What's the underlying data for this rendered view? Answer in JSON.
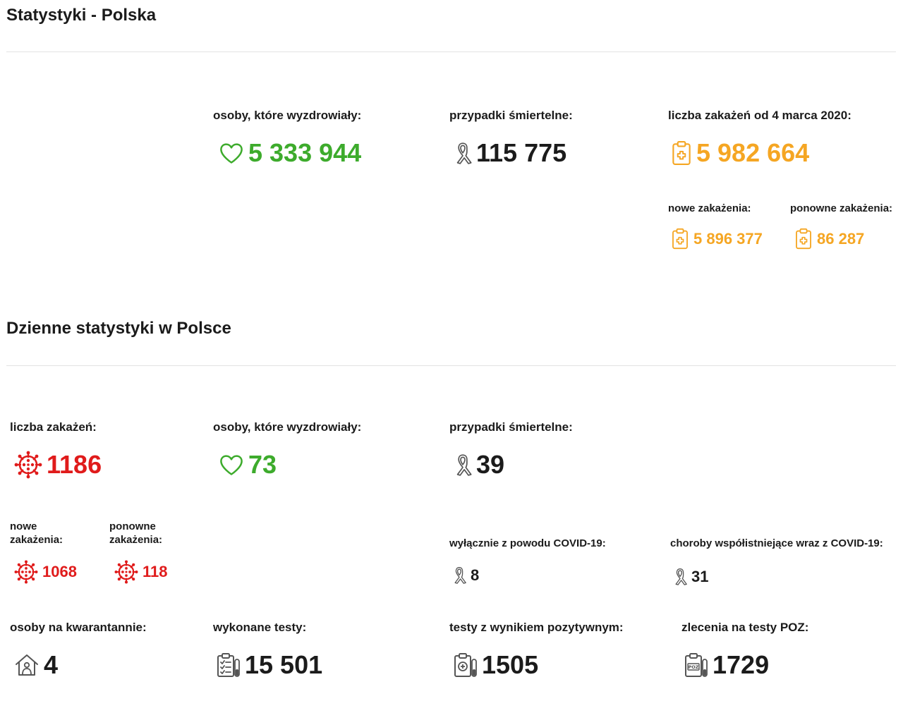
{
  "totals": {
    "title": "Statystyki - Polska",
    "recovered_label": "osoby, które wyzdrowiały:",
    "recovered_value": "5 333 944",
    "deaths_label": "przypadki śmiertelne:",
    "deaths_value": "115 775",
    "infections_label": "liczba zakażeń od 4 marca 2020:",
    "infections_value": "5 982 664",
    "new_infections_label": "nowe zakażenia:",
    "new_infections_value": "5 896 377",
    "reinfections_label": "ponowne zakażenia:",
    "reinfections_value": "86 287"
  },
  "daily": {
    "title": "Dzienne statystyki w Polsce",
    "infections_label": "liczba zakażeń:",
    "infections_value": "1186",
    "recovered_label": "osoby, które wyzdrowiały:",
    "recovered_value": "73",
    "deaths_label": "przypadki śmiertelne:",
    "deaths_value": "39",
    "new_infections_label": "nowe zakażenia:",
    "new_infections_value": "1068",
    "reinfections_label": "ponowne zakażenia:",
    "reinfections_value": "118",
    "covid_only_label": "wyłącznie z powodu COVID-19:",
    "covid_only_value": "8",
    "comorbid_label": "choroby współistniejące wraz z COVID-19:",
    "comorbid_value": "31",
    "quarantine_label": "osoby na kwarantannie:",
    "quarantine_value": "4",
    "tests_label": "wykonane testy:",
    "tests_value": "15 501",
    "positive_tests_label": "testy z wynikiem pozytywnym:",
    "positive_tests_value": "1505",
    "poz_orders_label": "zlecenia na testy POZ:",
    "poz_orders_value": "1729"
  },
  "colors": {
    "recovered": "#3dab2c",
    "infections_total": "#f5a623",
    "infections_daily": "#e01b1b",
    "neutral": "#1b1b1b"
  },
  "icons": {
    "recovered": "heart-icon",
    "deaths": "ribbon-icon",
    "infections_total": "medical-clipboard-icon",
    "infections_daily": "virus-icon",
    "quarantine": "house-icon",
    "tests": "test-clipboard-icon",
    "positive_tests": "test-tube-icon",
    "poz_orders": "poz-test-icon"
  }
}
